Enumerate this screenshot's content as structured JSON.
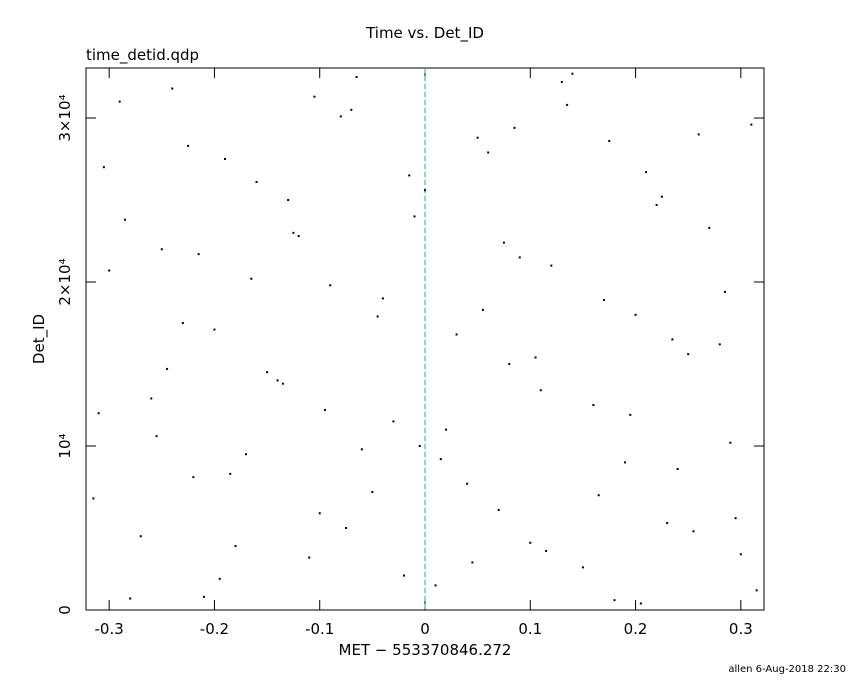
{
  "chart_data": {
    "type": "scatter",
    "title": "Time vs. Det_ID",
    "subtitle": "time_detid.qdp",
    "x_label": "MET − 553370846.272",
    "y_label": "Det_ID",
    "footer": "allen  6-Aug-2018 22:30",
    "xlim": [
      -0.322,
      0.322
    ],
    "ylim": [
      0,
      33050
    ],
    "xticks": [
      -0.3,
      -0.2,
      -0.1,
      0,
      0.1,
      0.2,
      0.3
    ],
    "yticks": [
      0,
      {
        "value": 10000,
        "label": "10⁴"
      },
      {
        "value": 20000,
        "label": "2×10⁴"
      },
      {
        "value": 30000,
        "label": "3×10⁴"
      }
    ],
    "reference_line_x": 0,
    "reference_line_color": "#2aa198",
    "series": [
      {
        "color": "#000000",
        "x": [
          -0.31,
          -0.29,
          -0.27,
          -0.25,
          -0.23,
          -0.21,
          -0.19,
          -0.17,
          -0.15,
          -0.13,
          -0.11,
          -0.09,
          -0.07,
          -0.05,
          -0.03,
          -0.01,
          0.01,
          0.03,
          0.05,
          0.07,
          0.09,
          0.11,
          0.13,
          0.15,
          0.17,
          0.19,
          0.21,
          0.23,
          0.25,
          0.27,
          0.29,
          0.31,
          -0.3,
          -0.28,
          -0.26,
          -0.24,
          -0.22,
          -0.2,
          -0.18,
          -0.16,
          -0.14,
          -0.12,
          -0.1,
          -0.08,
          -0.06,
          -0.04,
          -0.02,
          0.0,
          0.02,
          0.04,
          0.06,
          0.08,
          0.1,
          0.12,
          0.14,
          0.16,
          0.18,
          0.2,
          0.22,
          0.24,
          0.26,
          0.28,
          0.3,
          -0.315,
          -0.285,
          -0.255,
          -0.225,
          -0.195,
          -0.165,
          -0.135,
          -0.105,
          -0.075,
          -0.045,
          -0.015,
          0.015,
          0.045,
          0.075,
          0.105,
          0.135,
          0.165,
          0.195,
          0.225,
          0.255,
          0.285,
          0.315,
          -0.305,
          -0.245,
          -0.185,
          -0.125,
          -0.065,
          -0.005,
          0.055,
          0.115,
          0.175,
          0.235,
          0.295,
          -0.215,
          -0.095,
          0.085,
          0.205
        ],
        "values": [
          12000,
          31000,
          4500,
          22000,
          17500,
          800,
          27500,
          9500,
          14500,
          25000,
          3200,
          19800,
          30500,
          7200,
          11500,
          24000,
          1500,
          16800,
          28800,
          6100,
          21500,
          13400,
          32200,
          2600,
          18900,
          9000,
          26700,
          5300,
          15600,
          23300,
          10200,
          29600,
          20700,
          700,
          12900,
          31800,
          8100,
          17100,
          3900,
          26100,
          14000,
          22800,
          5900,
          30100,
          9800,
          19000,
          2100,
          25600,
          11000,
          7700,
          27900,
          15000,
          4100,
          21000,
          32700,
          12500,
          600,
          18000,
          24700,
          8600,
          29000,
          16200,
          3400,
          6800,
          23800,
          10600,
          28300,
          1900,
          20200,
          13800,
          31300,
          5000,
          17900,
          26500,
          9200,
          2900,
          22400,
          15400,
          30800,
          7000,
          11900,
          25200,
          4800,
          19400,
          1200,
          27000,
          14700,
          8300,
          23000,
          32500,
          10000,
          18300,
          3600,
          28600,
          16500,
          5600,
          21700,
          12200,
          29400,
          400
        ]
      }
    ]
  }
}
